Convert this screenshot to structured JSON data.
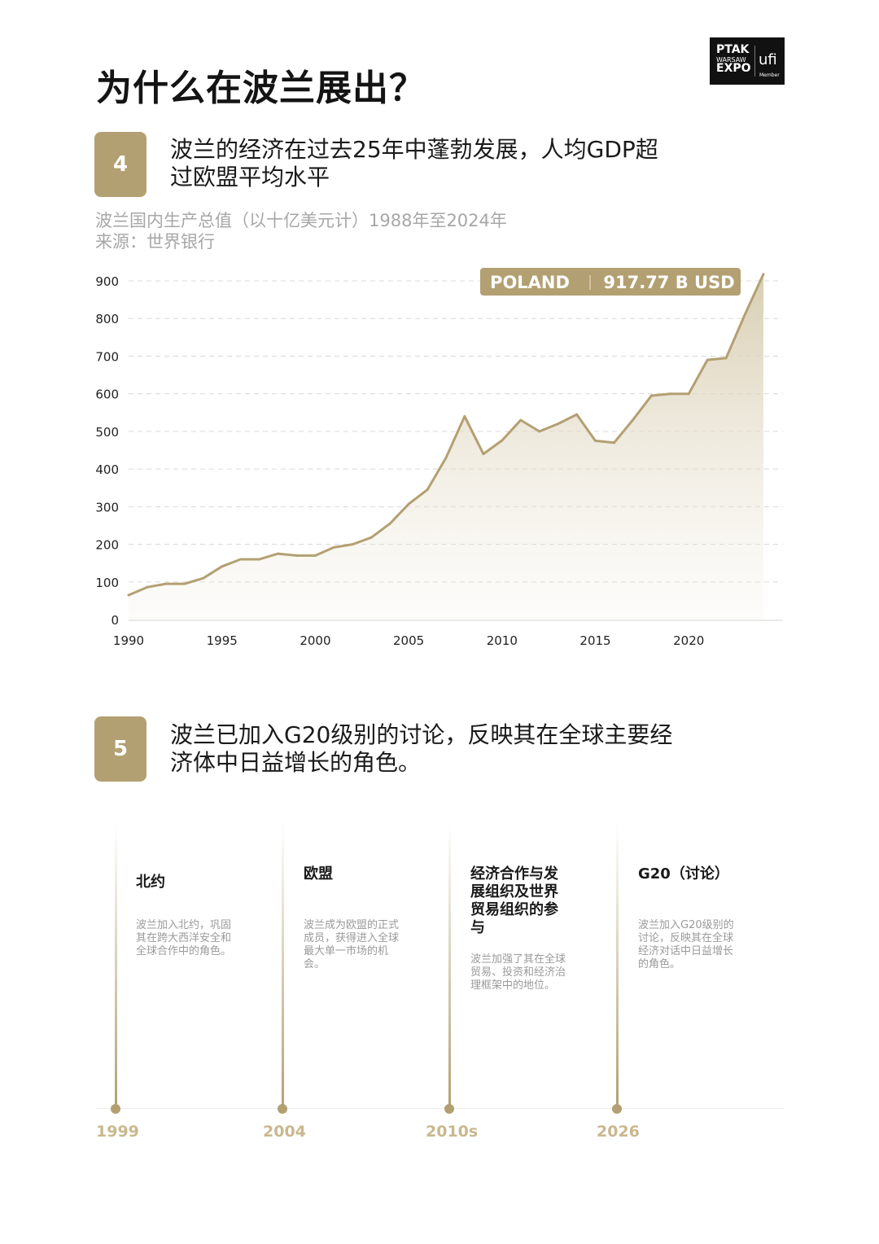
{
  "page_title": "为什么在波兰展出？",
  "logo": {
    "line1": "PTAK",
    "line2": "WARSAW",
    "line3": "EXPO",
    "ufi": "ufi",
    "member": "Member"
  },
  "section4": {
    "number": "4",
    "heading_line1": "波兰的经济在过去25年中蓬勃发展，人均GDP超",
    "heading_line2": "过欧盟平均水平",
    "subtitle_line1": "波兰国内生产总值（以十亿美元计）1988年至2024年",
    "subtitle_line2": "来源：世界银行"
  },
  "chart_data": {
    "type": "area",
    "title": "",
    "xlabel": "",
    "ylabel": "",
    "xlim": [
      1990,
      2024
    ],
    "ylim": [
      0,
      900
    ],
    "xticks": [
      1990,
      1995,
      2000,
      2005,
      2010,
      2015,
      2020
    ],
    "yticks": [
      0,
      100,
      200,
      300,
      400,
      500,
      600,
      700,
      800,
      900
    ],
    "grid": "horizontal-dashed",
    "series": [
      {
        "x": [
          1990,
          1991,
          1992,
          1993,
          1994,
          1995,
          1996,
          1997,
          1998,
          1999,
          2000,
          2001,
          2002,
          2003,
          2004,
          2005,
          2006,
          2007,
          2008,
          2009,
          2010,
          2011,
          2012,
          2013,
          2014,
          2015,
          2016,
          2017,
          2018,
          2019,
          2020,
          2021,
          2022,
          2023,
          2024
        ],
        "values": [
          65,
          86,
          95,
          95,
          110,
          141,
          160,
          160,
          175,
          170,
          170,
          192,
          200,
          218,
          255,
          307,
          345,
          430,
          540,
          440,
          476,
          530,
          500,
          520,
          545,
          475,
          470,
          530,
          595,
          600,
          600,
          690,
          695,
          810,
          917.77
        ]
      }
    ],
    "callout": {
      "label": "POLAND",
      "value": "917.77 B USD"
    },
    "colors": {
      "line": "#b3a072",
      "fill": "#d6cbae",
      "grid": "#d9d9d9",
      "callout_bg": "#b3a072"
    }
  },
  "section5": {
    "number": "5",
    "heading_line1": "波兰已加入G20级别的讨论，反映其在全球主要经",
    "heading_line2": "济体中日益增长的角色。"
  },
  "timeline": [
    {
      "year": "1999",
      "title": "北约",
      "desc_lines": [
        "波兰加入北约，巩固",
        "其在跨大西洋安全和",
        "全球合作中的角色。"
      ]
    },
    {
      "year": "2004",
      "title": "欧盟",
      "desc_lines": [
        "波兰成为欧盟的正式",
        "成员，获得进入全球",
        "最大单一市场的机",
        "会。"
      ]
    },
    {
      "year": "2010s",
      "title_lines": [
        "经济合作与发",
        "展组织及世界",
        "贸易组织的参",
        "与"
      ],
      "desc_lines": [
        "波兰加强了其在全球",
        "贸易、投资和经济治",
        "理框架中的地位。"
      ]
    },
    {
      "year": "2026",
      "title": "G20（讨论）",
      "desc_lines": [
        "波兰加入G20级别的",
        "讨论，反映其在全球",
        "经济对话中日益增长",
        "的角色。"
      ]
    }
  ],
  "accent_color": "#b3a072"
}
